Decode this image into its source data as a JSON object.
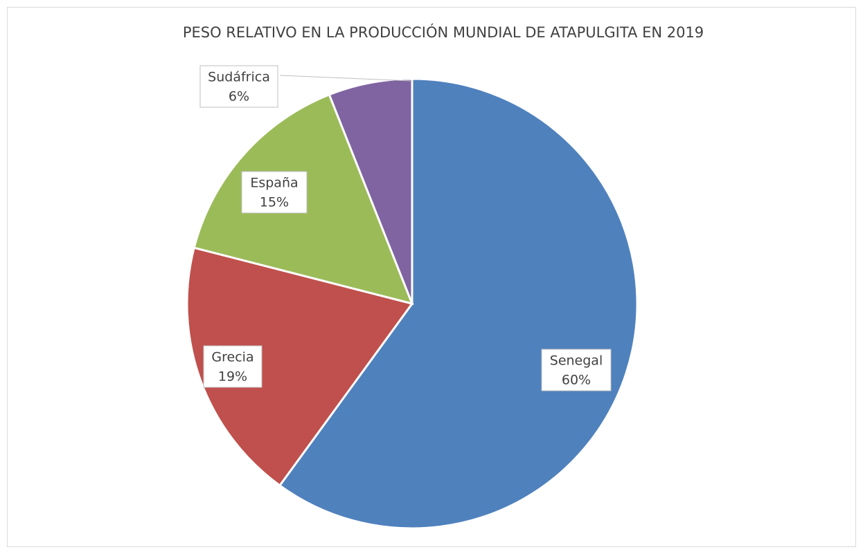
{
  "chart_data": {
    "type": "pie",
    "title": "PESO RELATIVO EN LA PRODUCCIÓN MUNDIAL DE ATAPULGITA EN 2019",
    "categories": [
      "Senegal",
      "Grecia",
      "España",
      "Sudáfrica"
    ],
    "values": [
      60,
      19,
      15,
      6
    ],
    "value_labels": [
      "60%",
      "19%",
      "15%",
      "6%"
    ],
    "colors": [
      "#4f81bd",
      "#c0504d",
      "#9bbb59",
      "#8064a2"
    ]
  }
}
